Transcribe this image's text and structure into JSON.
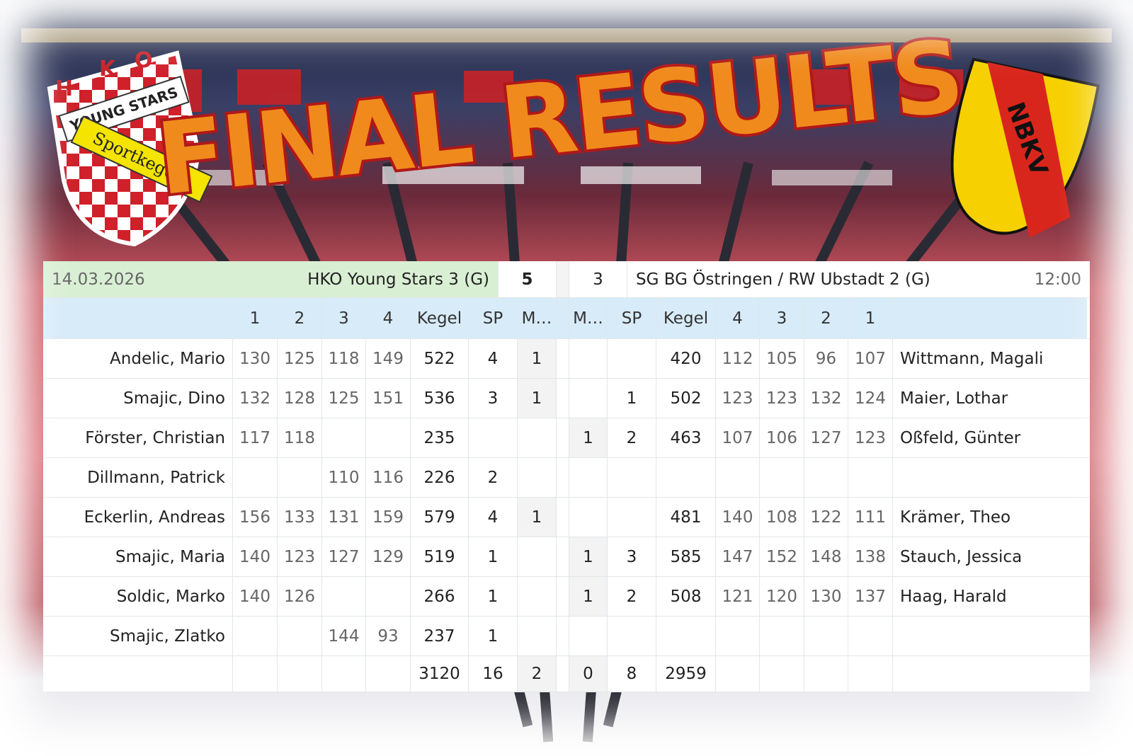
{
  "header": {
    "title": "FINAL RESULTS",
    "left_logo": {
      "letters": [
        "H",
        "K",
        "O"
      ],
      "band": "YOUNG STARS",
      "ribbon": "Sportkegeln"
    },
    "right_logo": {
      "text": "NBKV"
    }
  },
  "table": {
    "match": {
      "date": "14.03.2026",
      "home": "HKO Young Stars 3 (G)",
      "home_score": 5,
      "away_score": 3,
      "away": "SG BG Östringen / RW Ubstadt 2 (G)",
      "time": "12:00"
    },
    "columns": [
      null,
      "1",
      "2",
      "3",
      "4",
      "Kegel",
      "SP",
      "M…",
      "M…",
      "SP",
      "Kegel",
      "4",
      "3",
      "2",
      "1",
      null
    ],
    "rows": [
      [
        "Andelic, Mario",
        130,
        125,
        118,
        149,
        522,
        4,
        1,
        null,
        null,
        420,
        112,
        105,
        96,
        107,
        "Wittmann, Magali"
      ],
      [
        "Smajic, Dino",
        132,
        128,
        125,
        151,
        536,
        3,
        1,
        null,
        1,
        502,
        123,
        123,
        132,
        124,
        "Maier, Lothar"
      ],
      [
        "Förster, Christian",
        117,
        118,
        null,
        null,
        235,
        null,
        null,
        1,
        2,
        463,
        107,
        106,
        127,
        123,
        "Oßfeld, Günter"
      ],
      [
        "Dillmann, Patrick",
        null,
        null,
        110,
        116,
        226,
        2,
        null,
        null,
        null,
        null,
        null,
        null,
        null,
        null,
        null
      ],
      [
        "Eckerlin, Andreas",
        156,
        133,
        131,
        159,
        579,
        4,
        1,
        null,
        null,
        481,
        140,
        108,
        122,
        111,
        "Krämer, Theo"
      ],
      [
        "Smajic, Maria",
        140,
        123,
        127,
        129,
        519,
        1,
        null,
        1,
        3,
        585,
        147,
        152,
        148,
        138,
        "Stauch, Jessica"
      ],
      [
        "Soldic, Marko",
        140,
        126,
        null,
        null,
        266,
        1,
        null,
        1,
        2,
        508,
        121,
        120,
        130,
        137,
        "Haag, Harald"
      ],
      [
        "Smajic, Zlatko",
        null,
        null,
        144,
        93,
        237,
        1,
        null,
        null,
        null,
        null,
        null,
        null,
        null,
        null,
        null
      ]
    ],
    "totals": [
      null,
      null,
      null,
      null,
      null,
      3120,
      16,
      2,
      0,
      8,
      2959,
      null,
      null,
      null,
      null,
      null
    ]
  }
}
